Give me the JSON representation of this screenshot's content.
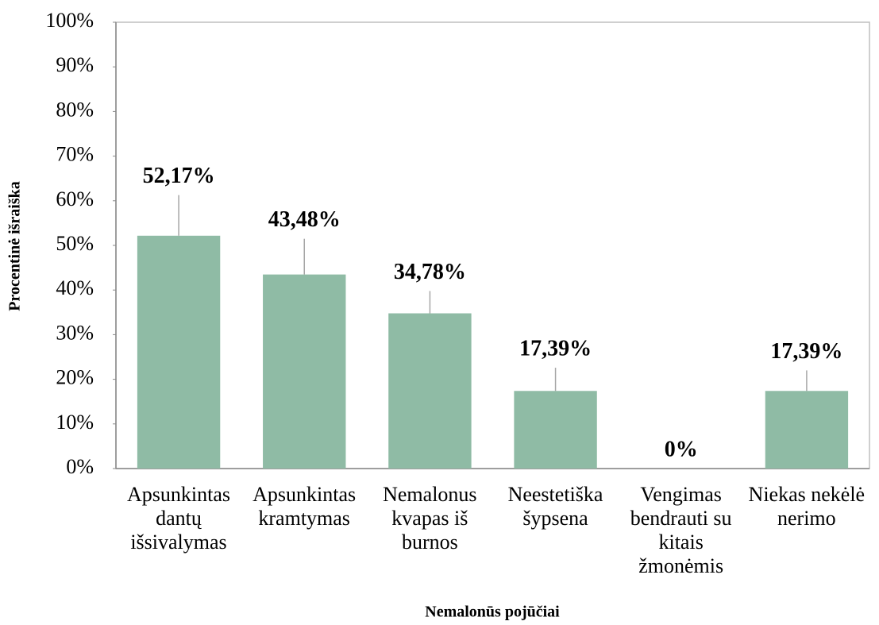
{
  "chart_data": {
    "type": "bar",
    "x_label": "Nemalonūs pojūčiai",
    "y_label": "Procentinė išraiška",
    "categories": [
      "Apsunkintas dantų išsivalymas",
      "Apsunkintas kramtymas",
      "Nemalonus kvapas iš burnos",
      "Neestetiška šypsena",
      "Vengimas bendrauti su kitais žmonėmis",
      "Niekas nekėlė nerimo"
    ],
    "values": [
      52.17,
      43.48,
      34.78,
      17.39,
      0,
      17.39
    ],
    "value_labels": [
      "52,17%",
      "43,48%",
      "34,78%",
      "17,39%",
      "0%",
      "17,39%"
    ],
    "errors": [
      9.1,
      8,
      5,
      5.2,
      0,
      4.6
    ],
    "color": "#8fbba5",
    "ylim": [
      0,
      100
    ],
    "yticks": [
      {
        "value": 0,
        "label": "0%"
      },
      {
        "value": 10,
        "label": "10%"
      },
      {
        "value": 20,
        "label": "20%"
      },
      {
        "value": 30,
        "label": "30%"
      },
      {
        "value": 40,
        "label": "40%"
      },
      {
        "value": 50,
        "label": "50%"
      },
      {
        "value": 60,
        "label": "60%"
      },
      {
        "value": 70,
        "label": "70%"
      },
      {
        "value": 80,
        "label": "80%"
      },
      {
        "value": 90,
        "label": "90%"
      },
      {
        "value": 100,
        "label": "100%"
      }
    ],
    "grid": false
  }
}
